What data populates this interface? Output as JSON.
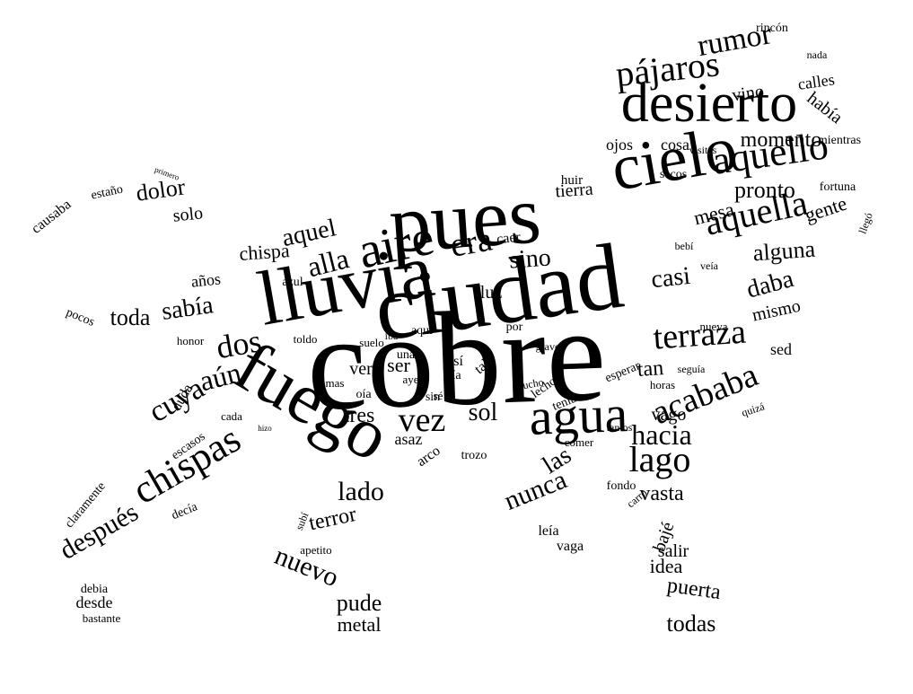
{
  "words": [
    "cobre",
    "ciudad",
    "pues",
    "lluvia",
    "fuego",
    "cielo",
    "desierto",
    "agua",
    "aire",
    "chispas",
    "aquello",
    "aquella",
    "pájaros",
    "terraza",
    "acababa",
    "lago",
    "era",
    "vez",
    "rumor",
    "dos",
    "alla",
    "cuya",
    "hacia",
    "nunca",
    "después",
    "aún",
    "daba",
    "sabía",
    "aquel",
    "casi",
    "sino",
    "sol",
    "las",
    "lado",
    "tres",
    "alguna",
    "pronto",
    "momento",
    "dolor",
    "toda",
    "nuevo",
    "terror",
    "pude",
    "metal",
    "puerta",
    "todas",
    "vasta",
    "gente",
    "mesa",
    "tierra",
    "mismo",
    "chispa",
    "había",
    "calles",
    "vino",
    "solo",
    "estaño",
    "causaba",
    "pocos",
    "años",
    "duda",
    "luz",
    "salir",
    "idea",
    "bajé",
    "vago",
    "tan",
    "sed",
    "ojos",
    "cosa",
    "mientras",
    "fortuna",
    "llegó",
    "rincón",
    "nada",
    "desde",
    "bastante",
    "debia",
    "claramente",
    "escasos",
    "decía",
    "cada",
    "honor",
    "ver",
    "ser",
    "asaz",
    "leía",
    "vaga",
    "subí",
    "apetito",
    "arco",
    "trozo",
    "comer",
    "fondo",
    "horas",
    "quizá",
    "seguía",
    "esperar",
    "nueva",
    "toldo",
    "suelo",
    "iba",
    "azul",
    "caer",
    "huir",
    "secos",
    "visitas",
    "aqui",
    "por",
    "sin",
    "oía",
    "una",
    "así",
    "día",
    "tal",
    "lecho",
    "tantos",
    "veía",
    "bebí",
    "tenía",
    "mas",
    "sé",
    "ayes",
    "mucho",
    "carro",
    "grave",
    "primero",
    "hizo"
  ]
}
